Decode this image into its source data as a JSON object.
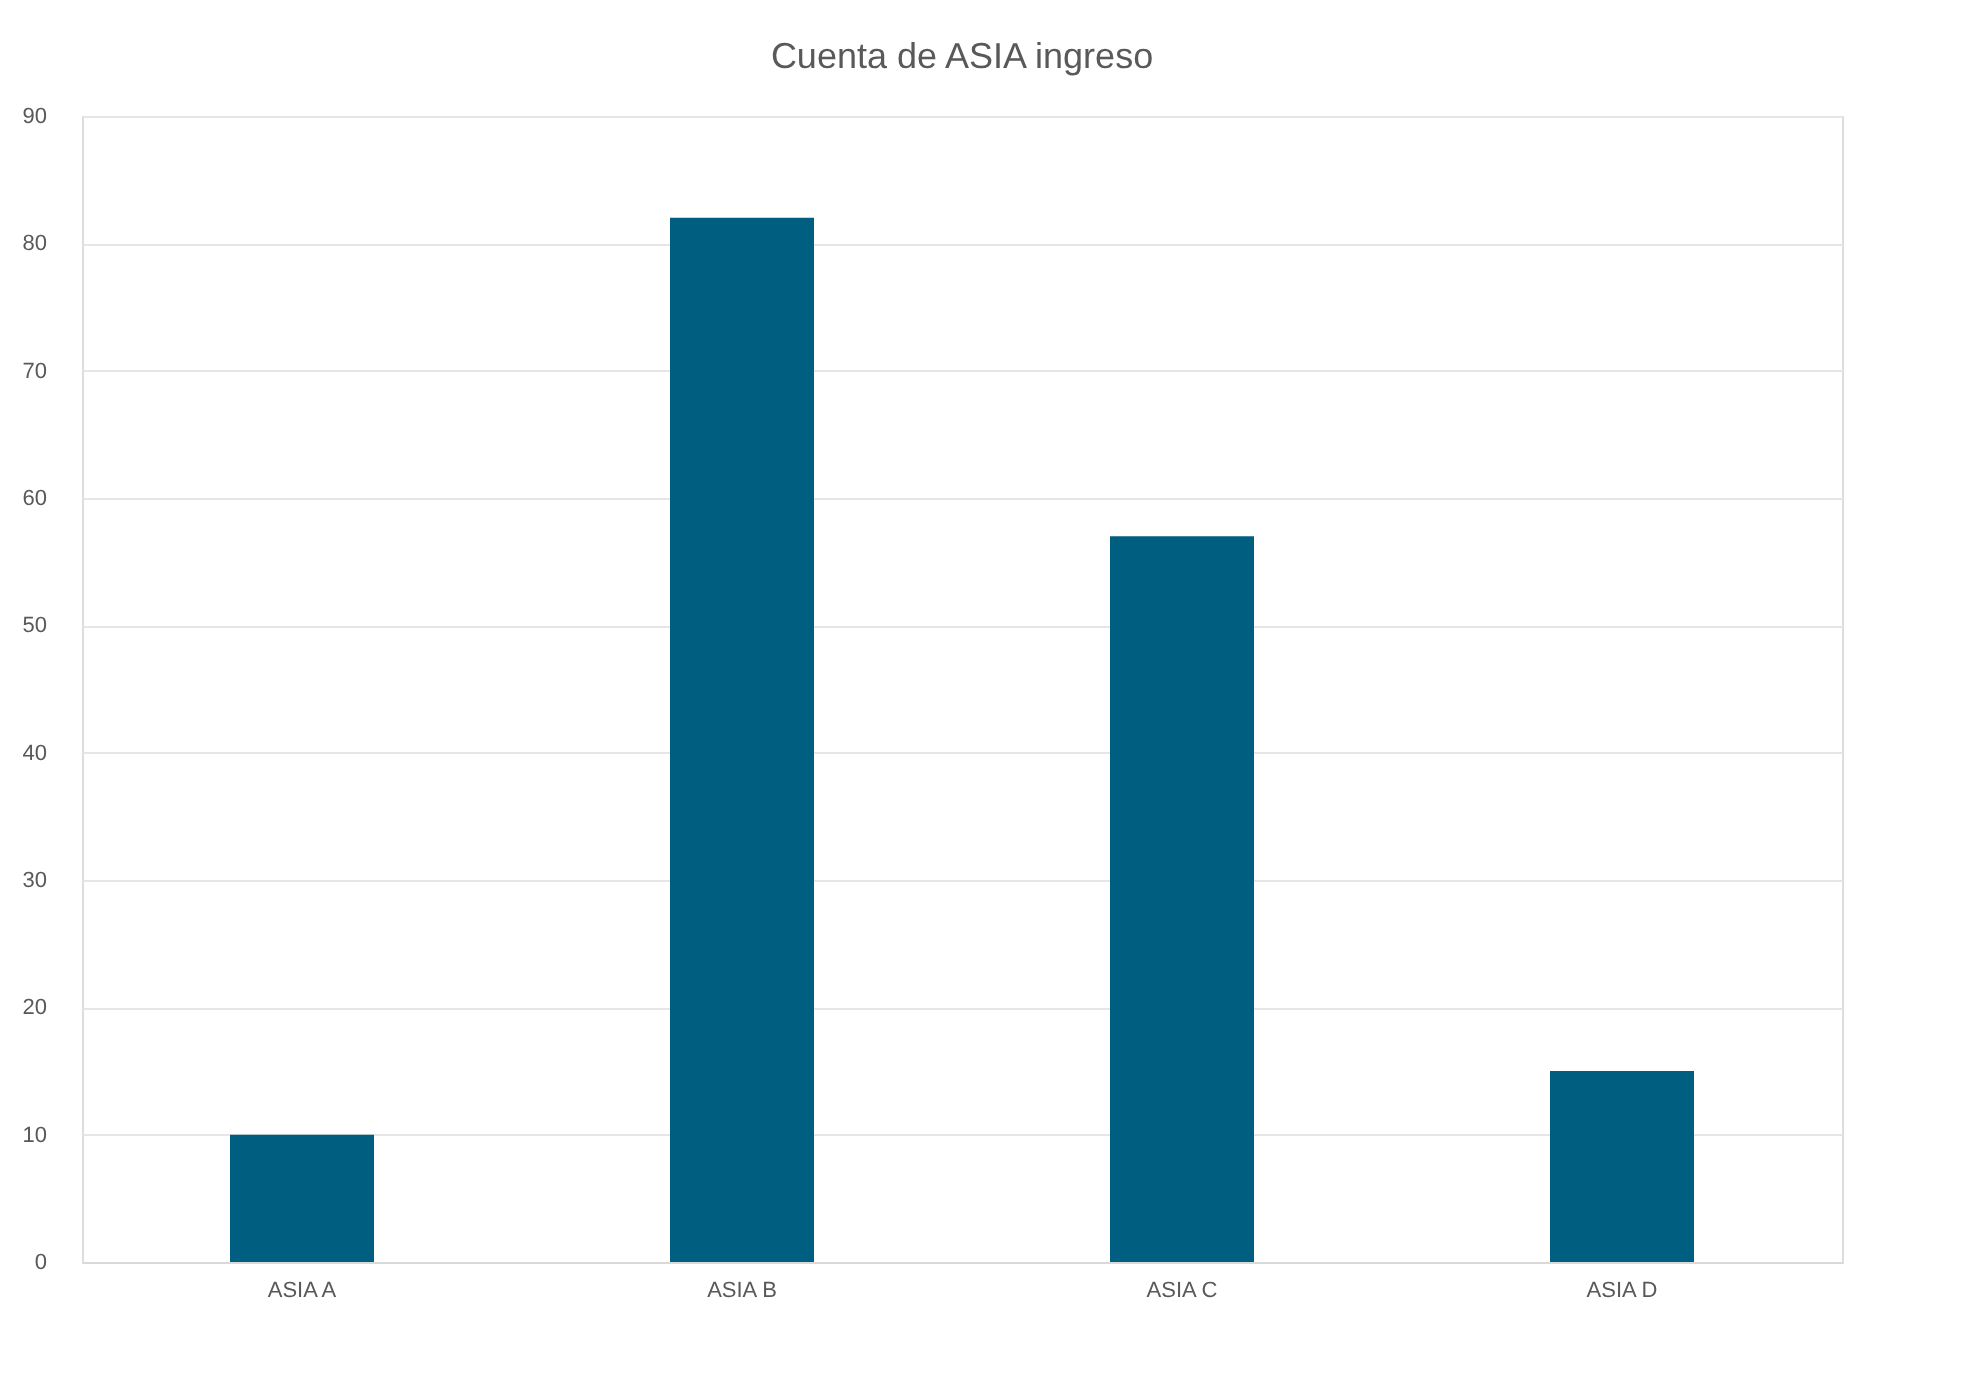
{
  "chart_data": {
    "type": "bar",
    "title": "Cuenta de ASIA ingreso",
    "categories": [
      "ASIA A",
      "ASIA B",
      "ASIA C",
      "ASIA D"
    ],
    "values": [
      10,
      82,
      57,
      15
    ],
    "color": "#005f80",
    "ylim": [
      0,
      90
    ],
    "yticks": [
      0,
      10,
      20,
      30,
      40,
      50,
      60,
      70,
      80,
      90
    ],
    "grid": "y"
  }
}
